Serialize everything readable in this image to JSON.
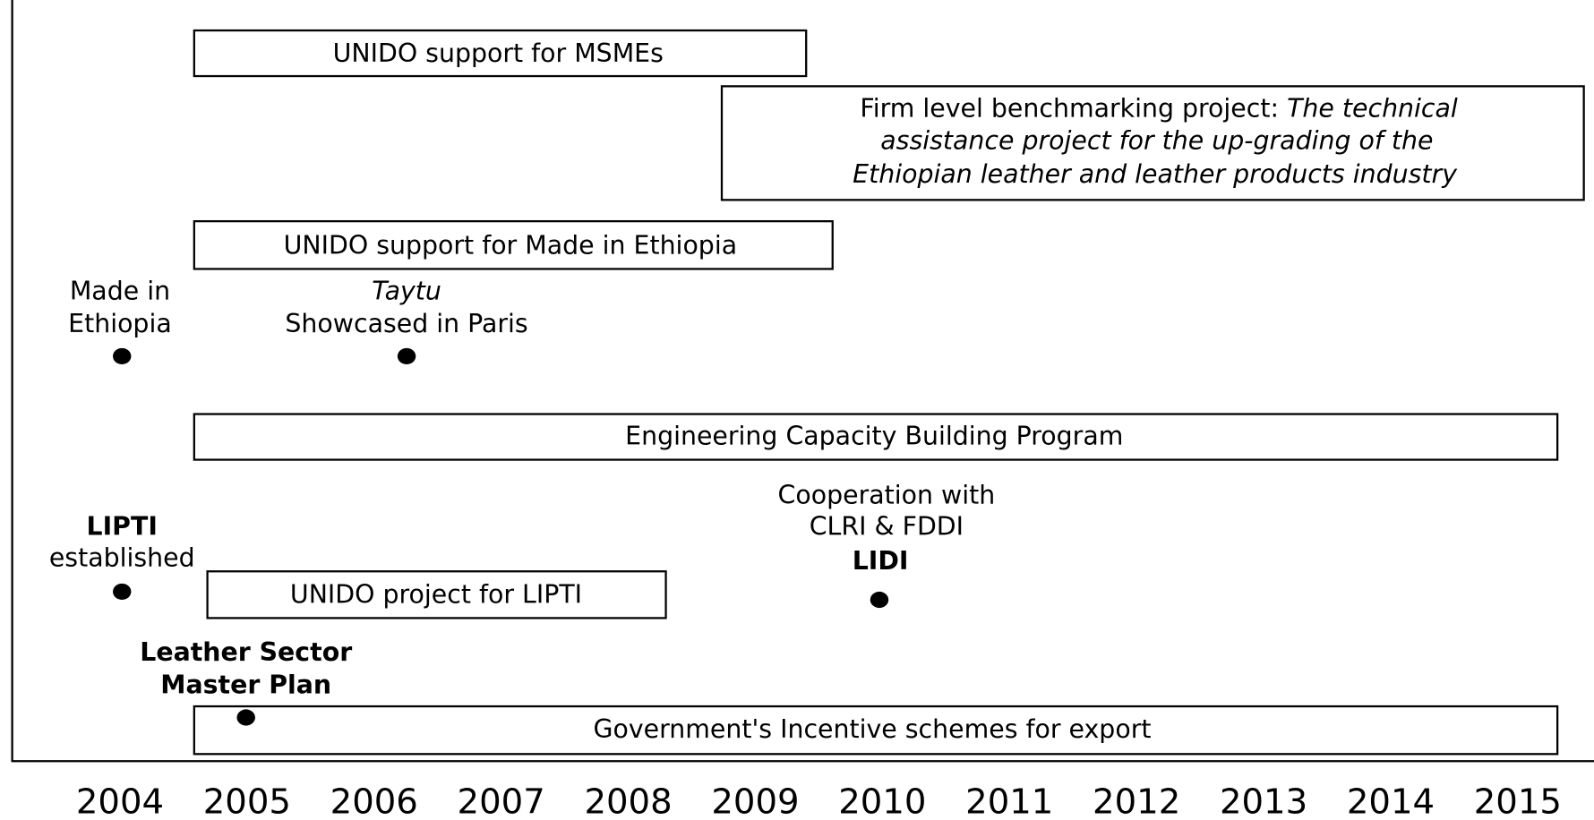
{
  "years": [
    "2004",
    "2005",
    "2006",
    "2007",
    "2008",
    "2009",
    "2010",
    "2011",
    "2012",
    "2013",
    "2014",
    "2015"
  ],
  "boxes": [
    {
      "lines": [
        "UNIDO support for MSMEs"
      ]
    },
    {
      "title": "Firm level benchmarking project:",
      "lines": [
        "The technical",
        "assistance project for the up-grading of the",
        "Ethiopian leather and leather products industry"
      ]
    },
    {
      "lines": [
        "UNIDO support for Made in Ethiopia"
      ]
    },
    {
      "lines": [
        "Engineering Capacity Building Program"
      ]
    },
    {
      "lines": [
        "UNIDO project for LIPTI"
      ]
    },
    {
      "lines": [
        "Government's Incentive schemes for export"
      ]
    }
  ],
  "events": [
    {
      "lines": [
        "Made in",
        "Ethiopia"
      ]
    },
    {
      "lines": [
        "Taytu",
        "Showcased in Paris"
      ]
    },
    {
      "lines": [
        "LIPTI",
        "established"
      ]
    },
    {
      "lines": [
        "Cooperation with",
        "CLRI & FDDI",
        "LIDI"
      ]
    },
    {
      "lines": [
        "Leather Sector",
        "Master Plan"
      ]
    }
  ]
}
